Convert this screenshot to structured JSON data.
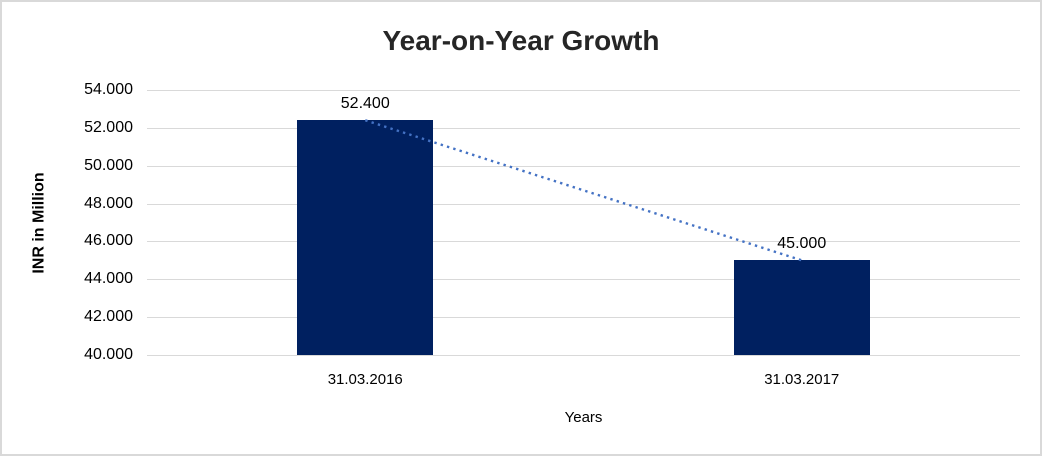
{
  "window": {
    "background": "#ffffff",
    "border_color": "#d9d9d9"
  },
  "chart_data": {
    "type": "bar",
    "title": "Year-on-Year Growth",
    "xlabel": "Years",
    "ylabel": "INR in Million",
    "categories": [
      "31.03.2016",
      "31.03.2017"
    ],
    "values": [
      52400,
      45000
    ],
    "value_labels": [
      "52.400",
      "45.000"
    ],
    "ylim": [
      40000,
      54000
    ],
    "ytick_step": 2000,
    "ytick_labels": [
      "54.000",
      "52.000",
      "50.000",
      "48.000",
      "46.000",
      "44.000",
      "42.000",
      "40.000"
    ],
    "grid": true,
    "legend": "none",
    "colors": {
      "bar": "#002060",
      "trendline": "#4472c4",
      "gridline": "#d9d9d9",
      "title_text": "#262626",
      "axis_text": "#000000"
    },
    "trendline": {
      "style": "dotted",
      "connects": "bar tops (52.400 to 45.000)"
    }
  }
}
